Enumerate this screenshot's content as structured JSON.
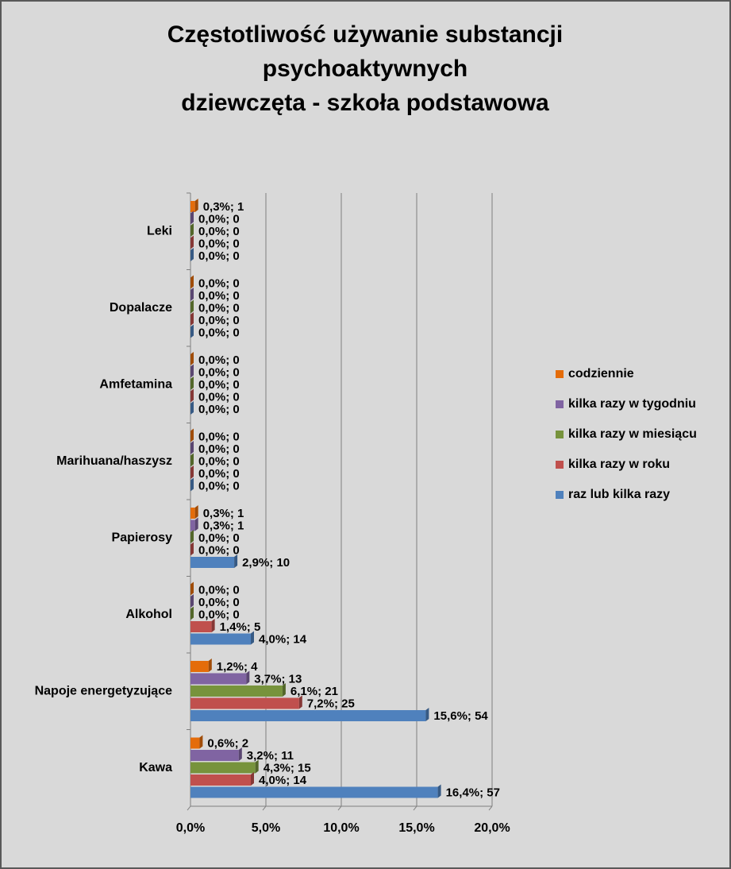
{
  "chart_data": {
    "type": "hbar",
    "title": [
      "Częstotliwość używanie substancji",
      "psychoaktywnych",
      "dziewczęta - szkoła podstawowa"
    ],
    "categories": [
      "Leki",
      "Dopalacze",
      "Amfetamina",
      "Marihuana/haszysz",
      "Papierosy",
      "Alkohol",
      "Napoje energetyzujące",
      "Kawa"
    ],
    "series": [
      {
        "name": "codziennie",
        "color": "#e46c0a",
        "values": [
          0.3,
          0,
          0,
          0,
          0.3,
          0,
          1.2,
          0.6
        ],
        "value_labels": [
          "0,3%; 1",
          "0,0%; 0",
          "0,0%; 0",
          "0,0%; 0",
          "0,3%; 1",
          "0,0%; 0",
          "1,2%; 4",
          "0,6%; 2"
        ]
      },
      {
        "name": "kilka razy w tygodniu",
        "color": "#8064a2",
        "values": [
          0,
          0,
          0,
          0,
          0.3,
          0,
          3.7,
          3.2
        ],
        "value_labels": [
          "0,0%; 0",
          "0,0%; 0",
          "0,0%; 0",
          "0,0%; 0",
          "0,3%; 1",
          "0,0%; 0",
          "3,7%; 13",
          "3,2%; 11"
        ]
      },
      {
        "name": "kilka razy w miesiącu",
        "color": "#77933c",
        "values": [
          0,
          0,
          0,
          0,
          0,
          0,
          6.1,
          4.3
        ],
        "value_labels": [
          "0,0%; 0",
          "0,0%; 0",
          "0,0%; 0",
          "0,0%; 0",
          "0,0%; 0",
          "0,0%; 0",
          "6,1%; 21",
          "4,3%; 15"
        ]
      },
      {
        "name": "kilka razy w roku",
        "color": "#c0504d",
        "values": [
          0,
          0,
          0,
          0,
          0,
          1.4,
          7.2,
          4.0
        ],
        "value_labels": [
          "0,0%; 0",
          "0,0%; 0",
          "0,0%; 0",
          "0,0%; 0",
          "0,0%; 0",
          "1,4%; 5",
          "7,2%; 25",
          "4,0%; 14"
        ]
      },
      {
        "name": "raz lub kilka razy",
        "color": "#4f81bd",
        "values": [
          0,
          0,
          0,
          0,
          2.9,
          4.0,
          15.6,
          16.4
        ],
        "value_labels": [
          "0,0%; 0",
          "0,0%; 0",
          "0,0%; 0",
          "0,0%; 0",
          "2,9%; 10",
          "4,0%; 14",
          "15,6%; 54",
          "16,4%; 57"
        ]
      }
    ],
    "xlim": [
      0,
      20
    ],
    "xticks": [
      {
        "value": 0,
        "label": "0,0%"
      },
      {
        "value": 5,
        "label": "5,0%"
      },
      {
        "value": 10,
        "label": "10,0%"
      },
      {
        "value": 15,
        "label": "15,0%"
      },
      {
        "value": 20,
        "label": "20,0%"
      }
    ],
    "grid": true,
    "legend": "right"
  }
}
